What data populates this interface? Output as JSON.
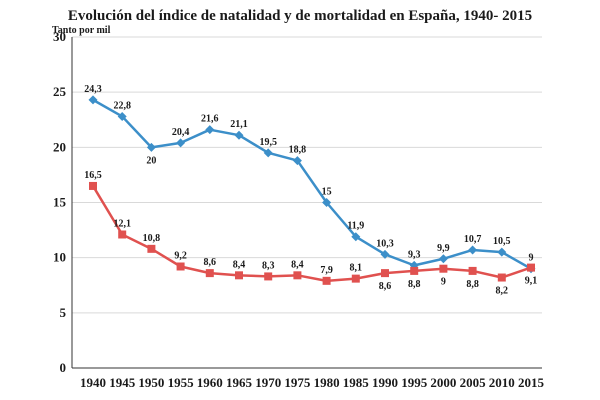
{
  "chart_data": {
    "type": "line",
    "title": "Evolución del índice de natalidad y de mortalidad en España, 1940- 2015",
    "ylabel": "Tanto por mil",
    "xlabel": "",
    "categories": [
      "1940",
      "1945",
      "1950",
      "1955",
      "1960",
      "1965",
      "1970",
      "1975",
      "1980",
      "1985",
      "1990",
      "1995",
      "2000",
      "2005",
      "2010",
      "2015"
    ],
    "ylim": [
      0,
      30
    ],
    "yticks": [
      0,
      5,
      10,
      15,
      20,
      25,
      30
    ],
    "grid": true,
    "legend": "none",
    "series": [
      {
        "color": "#3c8fc9",
        "marker": "diamond",
        "values": [
          24.3,
          22.8,
          20,
          20.4,
          21.6,
          21.1,
          19.5,
          18.8,
          15,
          11.9,
          10.3,
          9.3,
          9.9,
          10.7,
          10.5,
          9
        ],
        "labels": [
          "24,3",
          "22,8",
          "20",
          "20,4",
          "21,6",
          "21,1",
          "19,5",
          "18,8",
          "15",
          "11,9",
          "10,3",
          "9,3",
          "9,9",
          "10,7",
          "10,5",
          "9"
        ],
        "label_pos": [
          "above",
          "above",
          "below",
          "above",
          "above",
          "above",
          "above",
          "above",
          "above",
          "above",
          "above",
          "above",
          "above",
          "above",
          "above",
          "above"
        ]
      },
      {
        "color": "#e0514f",
        "marker": "square",
        "values": [
          16.5,
          12.1,
          10.8,
          9.2,
          8.6,
          8.4,
          8.3,
          8.4,
          7.9,
          8.1,
          8.6,
          8.8,
          9,
          8.8,
          8.2,
          9.1
        ],
        "labels": [
          "16,5",
          "12,1",
          "10,8",
          "9,2",
          "8,6",
          "8,4",
          "8,3",
          "8,4",
          "7,9",
          "8,1",
          "8,6",
          "8,8",
          "9",
          "8,8",
          "8,2",
          "9,1"
        ],
        "label_pos": [
          "above",
          "above",
          "above",
          "above",
          "above",
          "above",
          "above",
          "above",
          "above",
          "above",
          "below",
          "below",
          "below",
          "below",
          "below",
          "below"
        ]
      }
    ]
  }
}
